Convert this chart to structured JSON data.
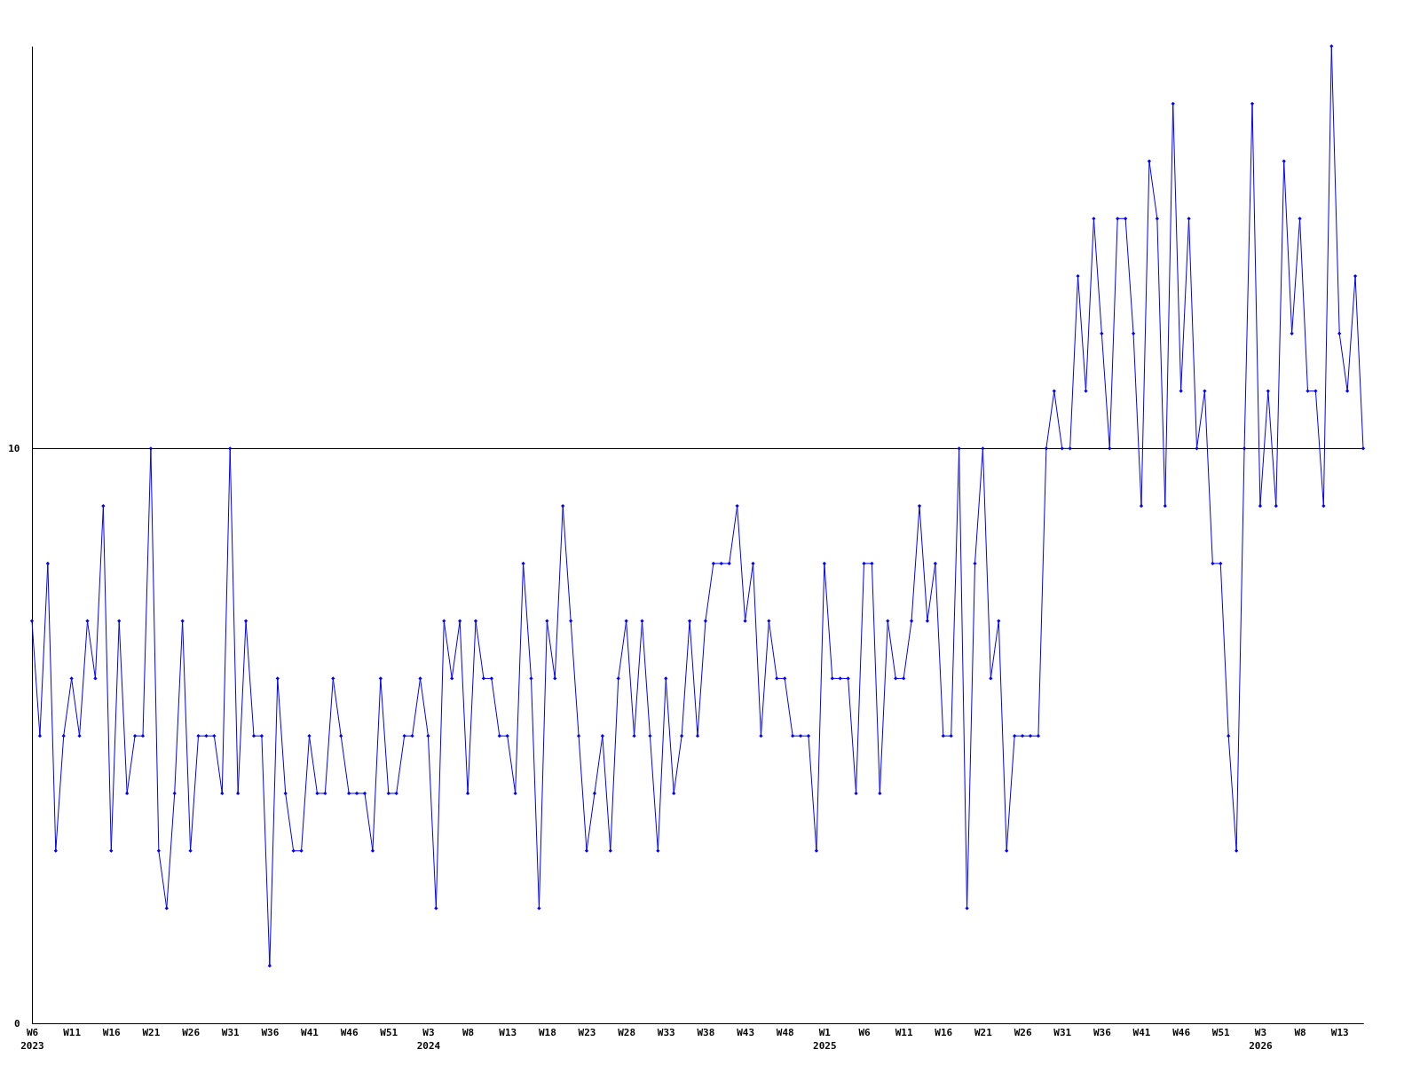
{
  "chart_data": {
    "type": "line",
    "categories": [
      "W6\n2023",
      null,
      null,
      null,
      null,
      "W11",
      null,
      null,
      null,
      null,
      "W16",
      null,
      null,
      null,
      null,
      "W21",
      null,
      null,
      null,
      null,
      "W26",
      null,
      null,
      null,
      null,
      "W31",
      null,
      null,
      null,
      null,
      "W36",
      null,
      null,
      null,
      null,
      "W41",
      null,
      null,
      null,
      null,
      "W46",
      null,
      null,
      null,
      null,
      "W51",
      null,
      null,
      null,
      null,
      "W3\n2024",
      null,
      null,
      null,
      null,
      "W8",
      null,
      null,
      null,
      null,
      "W13",
      null,
      null,
      null,
      null,
      "W18",
      null,
      null,
      null,
      null,
      "W23",
      null,
      null,
      null,
      null,
      "W28",
      null,
      null,
      null,
      null,
      "W33",
      null,
      null,
      null,
      null,
      "W38",
      null,
      null,
      null,
      null,
      "W43",
      null,
      null,
      null,
      null,
      "W48",
      null,
      null,
      null,
      null,
      "W1\n2025",
      null,
      null,
      null,
      null,
      "W6",
      null,
      null,
      null,
      null,
      "W11",
      null,
      null,
      null,
      null,
      "W16",
      null,
      null,
      null,
      null,
      "W21",
      null,
      null,
      null,
      null,
      "W26",
      null,
      null,
      null,
      null,
      "W31",
      null,
      null,
      null,
      null,
      "W36",
      null,
      null,
      null,
      null,
      "W41",
      null,
      null,
      null,
      null,
      "W46",
      null,
      null,
      null,
      null,
      "W51",
      null,
      null,
      null,
      null,
      "W3\n2026",
      null,
      null,
      null,
      null,
      "W8",
      null,
      null,
      null,
      null,
      "W13",
      null,
      null,
      null
    ],
    "series": [
      {
        "color": "#0000ff",
        "values": [
          7,
          5,
          8,
          3,
          5,
          6,
          5,
          7,
          6,
          9,
          3,
          7,
          4,
          5,
          5,
          10,
          3,
          2,
          4,
          7,
          3,
          5,
          5,
          5,
          4,
          10,
          4,
          7,
          5,
          5,
          1,
          6,
          4,
          3,
          3,
          5,
          4,
          4,
          6,
          5,
          4,
          4,
          4,
          3,
          6,
          4,
          4,
          5,
          5,
          6,
          5,
          2,
          7,
          6,
          7,
          4,
          7,
          6,
          6,
          5,
          5,
          4,
          8,
          6,
          2,
          7,
          6,
          9,
          7,
          5,
          3,
          4,
          5,
          3,
          6,
          7,
          5,
          7,
          5,
          3,
          6,
          4,
          5,
          7,
          5,
          7,
          8,
          8,
          8,
          9,
          7,
          8,
          5,
          7,
          6,
          6,
          5,
          5,
          5,
          3,
          8,
          6,
          6,
          6,
          4,
          8,
          8,
          4,
          7,
          6,
          6,
          7,
          9,
          7,
          8,
          5,
          5,
          10,
          2,
          8,
          10,
          6,
          7,
          3,
          5,
          5,
          5,
          5,
          10,
          11,
          10,
          10,
          13,
          11,
          14,
          12,
          10,
          14,
          14,
          12,
          9,
          15,
          14,
          9,
          16,
          11,
          14,
          10,
          11,
          8,
          8,
          5,
          3,
          10,
          16,
          9,
          11,
          9,
          15,
          12,
          14,
          11,
          11,
          9,
          17,
          12,
          11,
          13,
          10
        ]
      }
    ],
    "ylim": [
      0,
      17
    ],
    "yticks": [
      0,
      10
    ],
    "grid": "y",
    "marker": "diamond",
    "line_style": "solid"
  }
}
